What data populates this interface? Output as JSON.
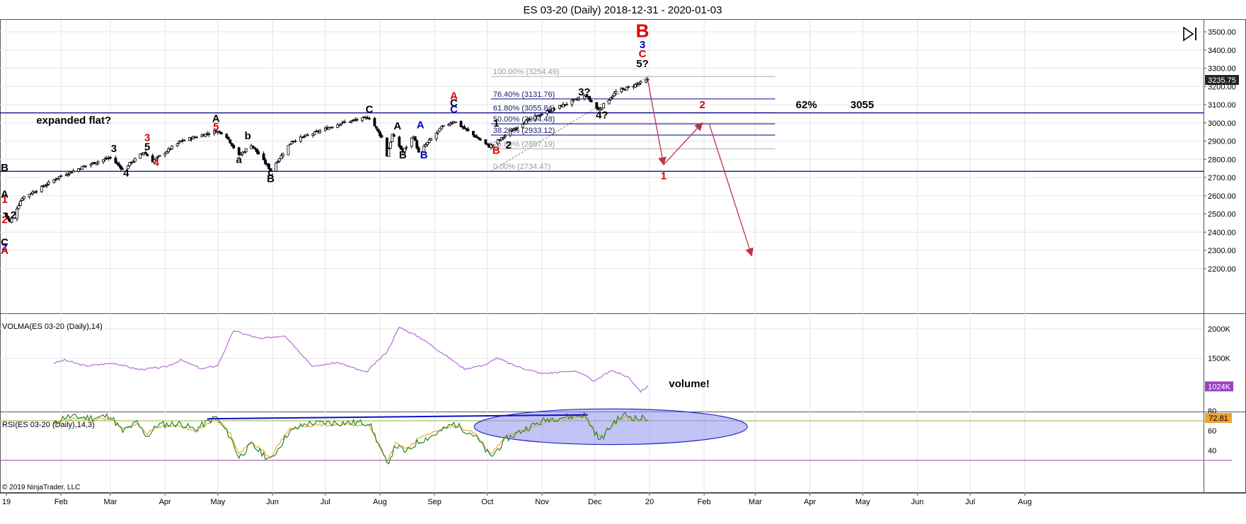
{
  "title": "ES 03-20 (Daily)  2018-12-31 - 2020-01-03",
  "copyright": "© 2019 NinjaTrader, LLC",
  "colors": {
    "bg": "#ffffff",
    "grid": "#e4e4e4",
    "candle": "#000000",
    "wave_red": "#dd0000",
    "wave_blue": "#0000cc",
    "wave_black": "#000000",
    "hline": "#00008b",
    "volma": "#b46ed6",
    "rsi": "#228b22",
    "rsi_signal": "#f0a030",
    "rsi_level": "#a8c060",
    "rsi_ellipse": "#8f92ee",
    "arrow": "#c0304a",
    "fib": "#8a8a8a"
  },
  "icons": {
    "panel_toggle": "collapse-panel-icon"
  },
  "chart_data": {
    "type": "candlestick",
    "time_axis": {
      "labels": [
        "19",
        "Feb",
        "Mar",
        "Apr",
        "May",
        "Jun",
        "Jul",
        "Aug",
        "Sep",
        "Oct",
        "Nov",
        "Dec",
        "20",
        "Feb",
        "Mar",
        "Apr",
        "May",
        "Jun",
        "Jul",
        "Aug"
      ],
      "dates": [
        "2019-01-01",
        "2019-02-01",
        "2019-03-01",
        "2019-04-01",
        "2019-05-01",
        "2019-06-01",
        "2019-07-01",
        "2019-08-01",
        "2019-09-01",
        "2019-10-01",
        "2019-11-01",
        "2019-12-01",
        "2020-01-01",
        "2020-02-01",
        "2020-03-01",
        "2020-04-01",
        "2020-05-01",
        "2020-06-01",
        "2020-07-01",
        "2020-08-01"
      ]
    },
    "price_panel": {
      "ylim": [
        2130,
        3560
      ],
      "ticks": [
        "3500.00",
        "3400.00",
        "3300.00",
        "3200.00",
        "3100.00",
        "3000.00",
        "2900.00",
        "2800.00",
        "2700.00",
        "2600.00",
        "2500.00",
        "2400.00",
        "2300.00",
        "2200.00"
      ],
      "last_price": "3235.75",
      "grid": true,
      "anchors": [
        [
          "2018-12-31",
          2505
        ],
        [
          "2019-01-03",
          2455
        ],
        [
          "2019-01-10",
          2590
        ],
        [
          "2019-01-20",
          2640
        ],
        [
          "2019-01-31",
          2705
        ],
        [
          "2019-02-15",
          2765
        ],
        [
          "2019-03-01",
          2810
        ],
        [
          "2019-03-08",
          2745
        ],
        [
          "2019-03-20",
          2840
        ],
        [
          "2019-03-25",
          2790
        ],
        [
          "2019-04-10",
          2900
        ],
        [
          "2019-04-30",
          2955
        ],
        [
          "2019-05-05",
          2940
        ],
        [
          "2019-05-13",
          2820
        ],
        [
          "2019-05-20",
          2880
        ],
        [
          "2019-05-31",
          2740
        ],
        [
          "2019-06-12",
          2900
        ],
        [
          "2019-06-25",
          2945
        ],
        [
          "2019-07-10",
          3000
        ],
        [
          "2019-07-26",
          3030
        ],
        [
          "2019-08-02",
          2920
        ],
        [
          "2019-08-05",
          2820
        ],
        [
          "2019-08-08",
          2935
        ],
        [
          "2019-08-14",
          2840
        ],
        [
          "2019-08-20",
          2930
        ],
        [
          "2019-08-23",
          2835
        ],
        [
          "2019-08-28",
          2890
        ],
        [
          "2019-09-05",
          2975
        ],
        [
          "2019-09-12",
          3010
        ],
        [
          "2019-10-02",
          2870
        ],
        [
          "2019-10-09",
          2915
        ],
        [
          "2019-10-20",
          2995
        ],
        [
          "2019-11-01",
          3050
        ],
        [
          "2019-11-26",
          3150
        ],
        [
          "2019-12-03",
          3070
        ],
        [
          "2019-12-13",
          3170
        ],
        [
          "2019-12-31",
          3235
        ]
      ],
      "horizontal_lines": [
        3055,
        2734
      ],
      "fib_retracement": {
        "start": [
          "2019-10-03",
          2734.47
        ],
        "end": [
          "2019-12-31",
          3254.49
        ],
        "levels": [
          {
            "label": "100.00% (3254.49)",
            "value": 3254.49
          },
          {
            "label": "76.40% (3131.76)",
            "value": 3131.76
          },
          {
            "label": "61.80% (3055.84)",
            "value": 3055.84
          },
          {
            "label": "50.00% (2994.48)",
            "value": 2994.48
          },
          {
            "label": "38.20% (2933.12)",
            "value": 2933.12
          },
          {
            "label": "23.60% (2857.19)",
            "value": 2857.19
          },
          {
            "label": "0.00% (2734.47)",
            "value": 2734.47
          }
        ]
      },
      "wave_labels": [
        {
          "text": "B",
          "date": "2018-12-31",
          "price": 2735,
          "color": "black"
        },
        {
          "text": "A",
          "date": "2018-12-31",
          "price": 2590,
          "color": "black"
        },
        {
          "text": "1",
          "date": "2018-12-31",
          "price": 2560,
          "color": "red"
        },
        {
          "text": "2",
          "date": "2018-12-31",
          "price": 2450,
          "color": "red"
        },
        {
          "text": "2",
          "date": "2019-01-05",
          "price": 2475,
          "color": "black"
        },
        {
          "text": "C",
          "date": "2018-12-31",
          "price": 2325,
          "color": "black"
        },
        {
          "text": "2",
          "date": "2018-12-31",
          "price": 2300,
          "color": "blue"
        },
        {
          "text": "A",
          "date": "2018-12-31",
          "price": 2280,
          "color": "red"
        },
        {
          "text": "3",
          "date": "2019-03-03",
          "price": 2840,
          "color": "black"
        },
        {
          "text": "4",
          "date": "2019-03-10",
          "price": 2705,
          "color": "black"
        },
        {
          "text": "3",
          "date": "2019-03-22",
          "price": 2900,
          "color": "red"
        },
        {
          "text": "5",
          "date": "2019-03-22",
          "price": 2850,
          "color": "black"
        },
        {
          "text": "4",
          "date": "2019-03-27",
          "price": 2765,
          "color": "red"
        },
        {
          "text": "A",
          "date": "2019-04-30",
          "price": 3005,
          "color": "black"
        },
        {
          "text": "5",
          "date": "2019-04-30",
          "price": 2960,
          "color": "red"
        },
        {
          "text": "b",
          "date": "2019-05-18",
          "price": 2910,
          "color": "black"
        },
        {
          "text": "a",
          "date": "2019-05-13",
          "price": 2780,
          "color": "black"
        },
        {
          "text": "c",
          "date": "2019-05-31",
          "price": 2710,
          "color": "black"
        },
        {
          "text": "B",
          "date": "2019-05-31",
          "price": 2675,
          "color": "black"
        },
        {
          "text": "C",
          "date": "2019-07-26",
          "price": 3055,
          "color": "black"
        },
        {
          "text": "A",
          "date": "2019-08-11",
          "price": 2965,
          "color": "black"
        },
        {
          "text": "B",
          "date": "2019-08-14",
          "price": 2805,
          "color": "black"
        },
        {
          "text": "A",
          "date": "2019-08-24",
          "price": 2970,
          "color": "blue"
        },
        {
          "text": "B",
          "date": "2019-08-26",
          "price": 2805,
          "color": "blue"
        },
        {
          "text": "A",
          "date": "2019-09-12",
          "price": 3130,
          "color": "red"
        },
        {
          "text": "C",
          "date": "2019-09-12",
          "price": 3090,
          "color": "black"
        },
        {
          "text": "C",
          "date": "2019-09-12",
          "price": 3055,
          "color": "blue"
        },
        {
          "text": "1",
          "date": "2019-10-06",
          "price": 2980,
          "color": "black"
        },
        {
          "text": "B",
          "date": "2019-10-06",
          "price": 2830,
          "color": "red"
        },
        {
          "text": "2",
          "date": "2019-10-13",
          "price": 2860,
          "color": "black"
        },
        {
          "text": "3?",
          "date": "2019-11-25",
          "price": 3150,
          "color": "black"
        },
        {
          "text": "4?",
          "date": "2019-12-05",
          "price": 3025,
          "color": "black"
        },
        {
          "text": "B",
          "date": "2019-12-28",
          "price": 3470,
          "color": "red",
          "big": true
        },
        {
          "text": "3",
          "date": "2019-12-28",
          "price": 3410,
          "color": "blue"
        },
        {
          "text": "C",
          "date": "2019-12-28",
          "price": 3360,
          "color": "red"
        },
        {
          "text": "5?",
          "date": "2019-12-28",
          "price": 3305,
          "color": "black"
        }
      ],
      "projection": {
        "points": [
          [
            "2019-12-31",
            3235
          ],
          [
            "2020-01-09",
            2770
          ],
          [
            "2020-01-31",
            3000
          ],
          [
            "2020-02-04",
            2990
          ],
          [
            "2020-02-28",
            2270
          ]
        ],
        "labels": [
          {
            "text": "1",
            "date": "2020-01-09",
            "price": 2690,
            "color": "red"
          },
          {
            "text": "2",
            "date": "2020-01-31",
            "price": 3080,
            "color": "red"
          }
        ]
      },
      "annotations": [
        {
          "text": "expanded flat?",
          "date": "2019-01-18",
          "price": 2995
        },
        {
          "text": "62%",
          "date": "2020-03-24",
          "price": 3080
        },
        {
          "text": "3055",
          "date": "2020-04-24",
          "price": 3080
        }
      ]
    },
    "volma_panel": {
      "title": "VOLMA(ES 03-20 (Daily),14)",
      "ylim": [
        850000,
        2200000
      ],
      "ticks": [
        "2000K",
        "1500K"
      ],
      "last_value": "1024K",
      "annotation": "volume!",
      "anchors": [
        [
          "2019-01-28",
          1420
        ],
        [
          "2019-02-03",
          1470
        ],
        [
          "2019-02-15",
          1370
        ],
        [
          "2019-03-03",
          1420
        ],
        [
          "2019-03-17",
          1310
        ],
        [
          "2019-04-01",
          1350
        ],
        [
          "2019-04-10",
          1470
        ],
        [
          "2019-04-22",
          1320
        ],
        [
          "2019-05-01",
          1380
        ],
        [
          "2019-05-10",
          1970
        ],
        [
          "2019-05-25",
          1830
        ],
        [
          "2019-06-08",
          1890
        ],
        [
          "2019-06-24",
          1360
        ],
        [
          "2019-07-08",
          1430
        ],
        [
          "2019-07-24",
          1260
        ],
        [
          "2019-08-05",
          1610
        ],
        [
          "2019-08-12",
          2030
        ],
        [
          "2019-08-24",
          1850
        ],
        [
          "2019-09-04",
          1620
        ],
        [
          "2019-09-18",
          1320
        ],
        [
          "2019-10-01",
          1400
        ],
        [
          "2019-10-06",
          1510
        ],
        [
          "2019-10-17",
          1370
        ],
        [
          "2019-11-01",
          1240
        ],
        [
          "2019-11-20",
          1290
        ],
        [
          "2019-12-01",
          1110
        ],
        [
          "2019-12-10",
          1300
        ],
        [
          "2019-12-20",
          1180
        ],
        [
          "2019-12-27",
          940
        ],
        [
          "2019-12-31",
          1024
        ]
      ]
    },
    "rsi_panel": {
      "title": "RSI(ES 03-20 (Daily),14,3)",
      "ylim": [
        25,
        85
      ],
      "ticks": [
        "80",
        "60",
        "40"
      ],
      "levels": [
        70,
        30
      ],
      "last_value": "72.81",
      "trendline": [
        [
          "2019-04-25",
          72
        ],
        [
          "2019-11-27",
          76
        ]
      ],
      "ellipse": {
        "center": [
          "2019-12-10",
          64
        ],
        "rx_days": 31,
        "ry": 18
      },
      "anchors": [
        [
          "2019-01-28",
          66
        ],
        [
          "2019-02-03",
          74
        ],
        [
          "2019-02-20",
          73
        ],
        [
          "2019-03-01",
          75
        ],
        [
          "2019-03-08",
          59
        ],
        [
          "2019-03-16",
          68
        ],
        [
          "2019-03-22",
          54
        ],
        [
          "2019-03-28",
          66
        ],
        [
          "2019-04-10",
          67
        ],
        [
          "2019-04-18",
          61
        ],
        [
          "2019-04-30",
          74
        ],
        [
          "2019-05-08",
          54
        ],
        [
          "2019-05-13",
          33
        ],
        [
          "2019-05-20",
          46
        ],
        [
          "2019-05-31",
          30
        ],
        [
          "2019-06-10",
          58
        ],
        [
          "2019-06-20",
          67
        ],
        [
          "2019-07-03",
          68
        ],
        [
          "2019-07-26",
          68
        ],
        [
          "2019-08-05",
          26
        ],
        [
          "2019-08-10",
          45
        ],
        [
          "2019-08-16",
          38
        ],
        [
          "2019-08-22",
          48
        ],
        [
          "2019-09-01",
          56
        ],
        [
          "2019-09-12",
          67
        ],
        [
          "2019-09-24",
          55
        ],
        [
          "2019-10-03",
          33
        ],
        [
          "2019-10-12",
          52
        ],
        [
          "2019-10-25",
          64
        ],
        [
          "2019-11-05",
          72
        ],
        [
          "2019-11-25",
          76
        ],
        [
          "2019-12-04",
          50
        ],
        [
          "2019-12-12",
          69
        ],
        [
          "2019-12-18",
          76
        ],
        [
          "2019-12-25",
          72
        ],
        [
          "2019-12-31",
          73
        ]
      ]
    }
  }
}
